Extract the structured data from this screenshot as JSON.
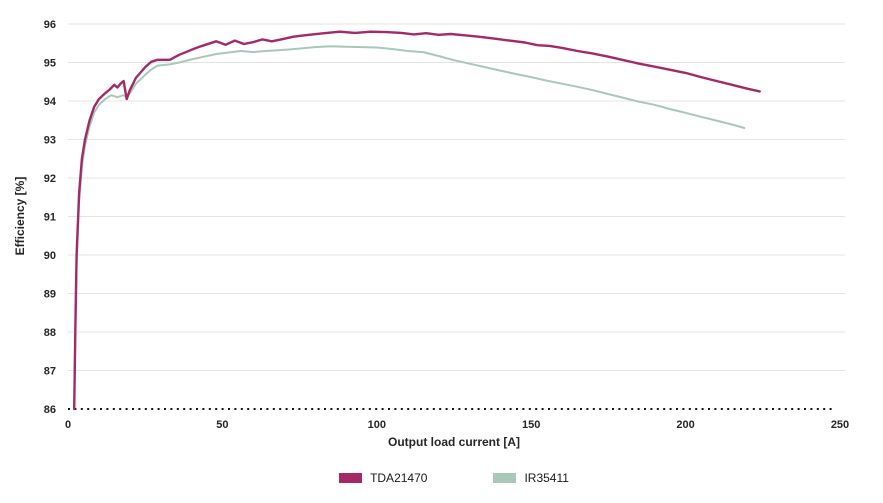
{
  "chart_data": {
    "type": "line",
    "title": "",
    "xlabel": "Output load current [A]",
    "ylabel": "Efficiency [%]",
    "xlim": [
      0,
      250
    ],
    "ylim": [
      86,
      96
    ],
    "xticks": [
      0,
      50,
      100,
      150,
      200,
      250
    ],
    "yticks": [
      86,
      87,
      88,
      89,
      90,
      91,
      92,
      93,
      94,
      95,
      96
    ],
    "grid": "horizontal-light-gray",
    "baseline_style": "dotted-black-at-86",
    "legend_position": "bottom-center",
    "colors": {
      "grid": "#e4e4e4",
      "baseline": "#141414",
      "text": "#262626"
    },
    "series": [
      {
        "name": "IR35411",
        "color": "#a8c8b9",
        "stroke_width": 2,
        "points": [
          [
            2,
            86.0
          ],
          [
            2.4,
            88.0
          ],
          [
            2.8,
            89.8
          ],
          [
            3.6,
            91.4
          ],
          [
            4.5,
            92.3
          ],
          [
            5.5,
            92.85
          ],
          [
            7,
            93.35
          ],
          [
            8.5,
            93.7
          ],
          [
            10,
            93.9
          ],
          [
            12,
            94.05
          ],
          [
            14,
            94.15
          ],
          [
            16,
            94.1
          ],
          [
            18,
            94.15
          ],
          [
            19,
            94.1
          ],
          [
            20,
            94.2
          ],
          [
            22,
            94.45
          ],
          [
            25,
            94.68
          ],
          [
            27,
            94.82
          ],
          [
            29,
            94.92
          ],
          [
            33,
            94.95
          ],
          [
            36,
            95.0
          ],
          [
            40,
            95.08
          ],
          [
            44,
            95.15
          ],
          [
            48,
            95.22
          ],
          [
            52,
            95.26
          ],
          [
            56,
            95.3
          ],
          [
            60,
            95.27
          ],
          [
            64,
            95.3
          ],
          [
            68,
            95.32
          ],
          [
            72,
            95.34
          ],
          [
            76,
            95.37
          ],
          [
            80,
            95.4
          ],
          [
            85,
            95.42
          ],
          [
            90,
            95.41
          ],
          [
            95,
            95.4
          ],
          [
            100,
            95.39
          ],
          [
            105,
            95.35
          ],
          [
            110,
            95.3
          ],
          [
            115,
            95.27
          ],
          [
            120,
            95.17
          ],
          [
            125,
            95.06
          ],
          [
            130,
            94.97
          ],
          [
            135,
            94.88
          ],
          [
            140,
            94.79
          ],
          [
            145,
            94.7
          ],
          [
            150,
            94.62
          ],
          [
            155,
            94.53
          ],
          [
            160,
            94.45
          ],
          [
            165,
            94.37
          ],
          [
            170,
            94.28
          ],
          [
            175,
            94.18
          ],
          [
            180,
            94.08
          ],
          [
            185,
            93.98
          ],
          [
            190,
            93.9
          ],
          [
            195,
            93.79
          ],
          [
            200,
            93.69
          ],
          [
            205,
            93.59
          ],
          [
            210,
            93.49
          ],
          [
            215,
            93.39
          ],
          [
            219,
            93.3
          ]
        ]
      },
      {
        "name": "TDA21470",
        "color": "#a32a66",
        "stroke_width": 2.4,
        "points": [
          [
            2,
            86.0
          ],
          [
            2.4,
            88.2
          ],
          [
            2.8,
            90.0
          ],
          [
            3.6,
            91.6
          ],
          [
            4.5,
            92.5
          ],
          [
            5.5,
            93.0
          ],
          [
            7,
            93.5
          ],
          [
            8.5,
            93.85
          ],
          [
            10,
            94.05
          ],
          [
            12,
            94.2
          ],
          [
            13.5,
            94.3
          ],
          [
            15,
            94.42
          ],
          [
            16,
            94.35
          ],
          [
            17,
            94.45
          ],
          [
            18,
            94.52
          ],
          [
            19,
            94.05
          ],
          [
            20,
            94.28
          ],
          [
            22,
            94.6
          ],
          [
            25,
            94.88
          ],
          [
            27,
            95.02
          ],
          [
            29,
            95.07
          ],
          [
            33,
            95.07
          ],
          [
            36,
            95.2
          ],
          [
            40,
            95.33
          ],
          [
            43,
            95.42
          ],
          [
            46,
            95.5
          ],
          [
            48,
            95.55
          ],
          [
            51,
            95.46
          ],
          [
            54,
            95.57
          ],
          [
            57,
            95.48
          ],
          [
            60,
            95.53
          ],
          [
            63,
            95.6
          ],
          [
            66,
            95.55
          ],
          [
            69,
            95.6
          ],
          [
            73,
            95.67
          ],
          [
            78,
            95.72
          ],
          [
            83,
            95.76
          ],
          [
            88,
            95.8
          ],
          [
            93,
            95.77
          ],
          [
            98,
            95.8
          ],
          [
            103,
            95.79
          ],
          [
            108,
            95.77
          ],
          [
            112,
            95.73
          ],
          [
            116,
            95.76
          ],
          [
            120,
            95.72
          ],
          [
            124,
            95.74
          ],
          [
            128,
            95.71
          ],
          [
            133,
            95.67
          ],
          [
            138,
            95.62
          ],
          [
            143,
            95.57
          ],
          [
            148,
            95.52
          ],
          [
            152,
            95.45
          ],
          [
            156,
            95.43
          ],
          [
            160,
            95.38
          ],
          [
            165,
            95.3
          ],
          [
            170,
            95.23
          ],
          [
            175,
            95.15
          ],
          [
            180,
            95.06
          ],
          [
            185,
            94.97
          ],
          [
            190,
            94.89
          ],
          [
            195,
            94.81
          ],
          [
            200,
            94.73
          ],
          [
            205,
            94.62
          ],
          [
            210,
            94.52
          ],
          [
            215,
            94.42
          ],
          [
            220,
            94.32
          ],
          [
            224,
            94.25
          ]
        ]
      }
    ]
  },
  "legend": {
    "items": [
      {
        "label": "TDA21470",
        "color": "#a32a66"
      },
      {
        "label": "IR35411",
        "color": "#a8c8b9"
      }
    ]
  }
}
